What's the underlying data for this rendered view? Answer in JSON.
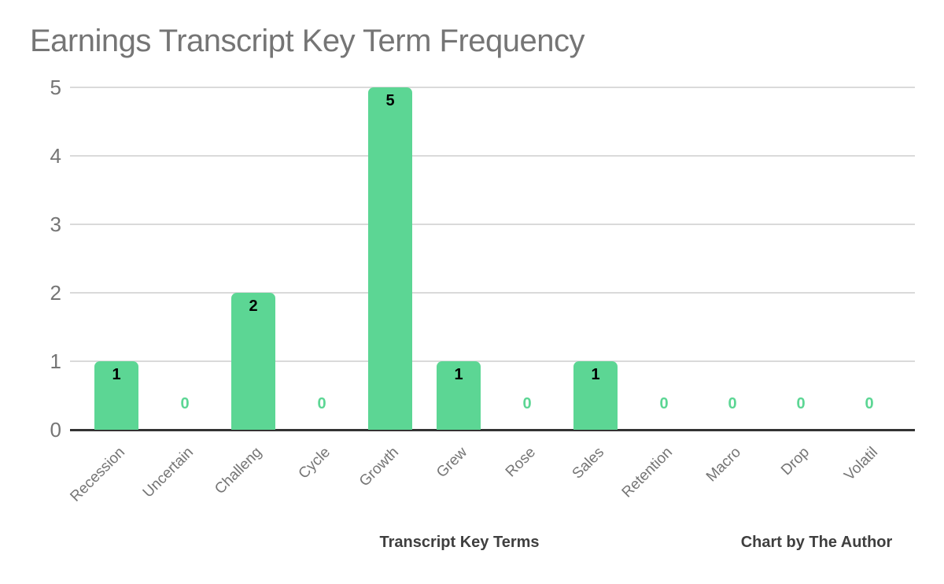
{
  "chart_data": {
    "type": "bar",
    "title": "Earnings Transcript Key Term Frequency",
    "categories": [
      "Recession",
      "Uncertain",
      "Challeng",
      "Cycle",
      "Growth",
      "Grew",
      "Rose",
      "Sales",
      "Retention",
      "Macro",
      "Drop",
      "Volatil"
    ],
    "values": [
      1,
      0,
      2,
      0,
      5,
      1,
      0,
      1,
      0,
      0,
      0,
      0
    ],
    "xlabel": "Transcript Key Terms",
    "ylabel": "",
    "credit": "Chart by The Author",
    "ylim": [
      0,
      5
    ],
    "yticks": [
      0,
      1,
      2,
      3,
      4,
      5
    ],
    "grid": true,
    "legend": "none",
    "bar_value_labels_shown": true,
    "colors": {
      "bar": "#5CD694",
      "bar_label": "#000000",
      "zero_label": "#5CD694",
      "title": "#757575",
      "axis_tick": "#757575",
      "category_label": "#757575",
      "gridline": "#dadada",
      "baseline": "#333333",
      "axis_title": "#3f3f3f"
    }
  }
}
